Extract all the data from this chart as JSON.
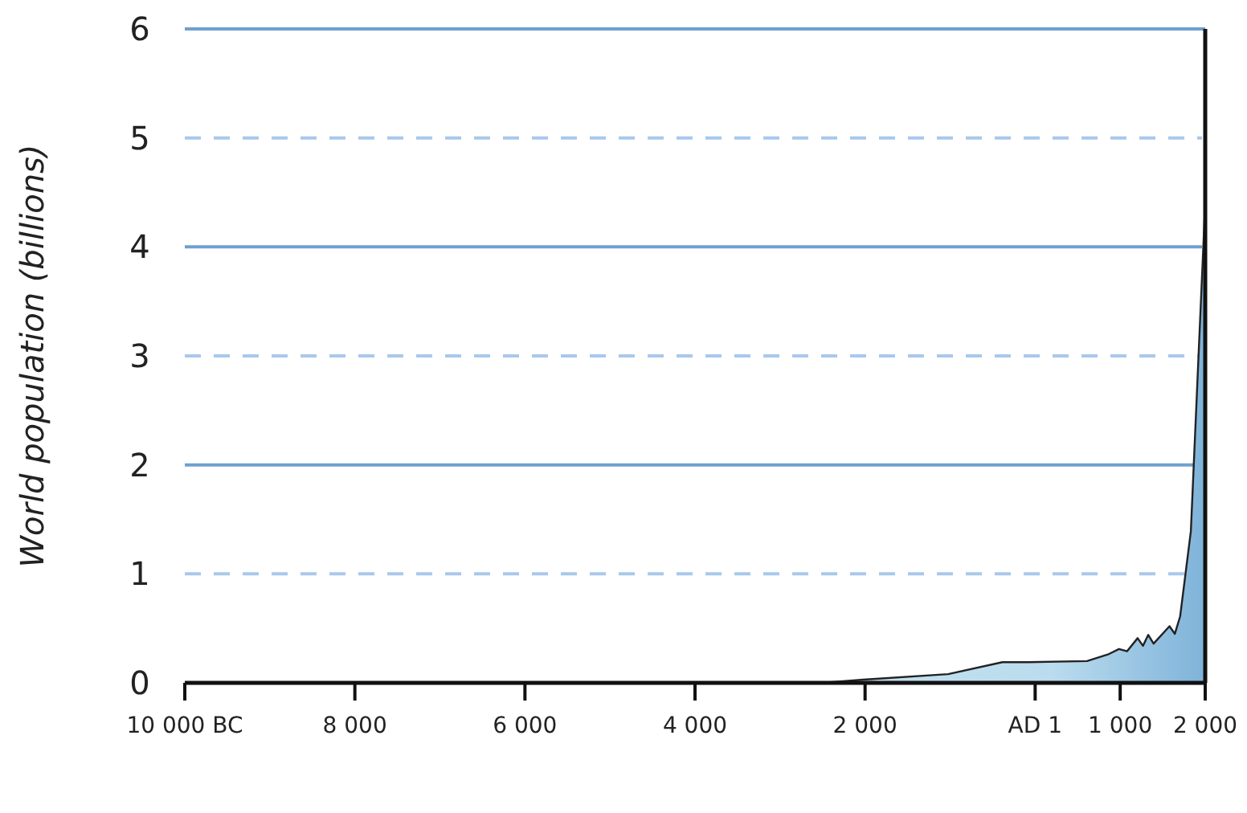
{
  "chart_data": {
    "type": "area",
    "ylabel": "World population (billions)",
    "x": [
      -10000,
      -2500,
      -2019,
      -1023,
      -385,
      -85,
      610,
      855,
      986,
      1080,
      1205,
      1268,
      1330,
      1393,
      1580,
      1643,
      1705,
      1768,
      1831,
      2000
    ],
    "series": [
      {
        "color": "#7fb3d9",
        "values": [
          0,
          0,
          0.03,
          0.08,
          0.19,
          0.19,
          0.2,
          0.26,
          0.31,
          0.29,
          0.41,
          0.34,
          0.44,
          0.36,
          0.52,
          0.45,
          0.61,
          1.0,
          1.39,
          4.4
        ]
      }
    ],
    "xlim": [
      -10000,
      2000
    ],
    "xticks": [
      {
        "value": -10000,
        "label": "10 000 BC"
      },
      {
        "value": -8000,
        "label": "8 000"
      },
      {
        "value": -6000,
        "label": "6 000"
      },
      {
        "value": -4000,
        "label": "4 000"
      },
      {
        "value": -2000,
        "label": "2 000"
      },
      {
        "value": 0,
        "label": "AD 1"
      },
      {
        "value": 1000,
        "label": "1 000"
      },
      {
        "value": 2000,
        "label": "2 000"
      }
    ],
    "ylim": [
      0,
      6
    ],
    "yticks": [
      0,
      1,
      2,
      3,
      4,
      5,
      6
    ],
    "ref_lines": [
      {
        "axis": "y",
        "value": 1,
        "color": "#a9c8ec",
        "line_style": "dashed"
      },
      {
        "axis": "y",
        "value": 2,
        "color": "#6f9fd0",
        "line_style": "solid"
      },
      {
        "axis": "y",
        "value": 3,
        "color": "#a9c8ec",
        "line_style": "dashed"
      },
      {
        "axis": "y",
        "value": 4,
        "color": "#6f9fd0",
        "line_style": "solid"
      },
      {
        "axis": "y",
        "value": 5,
        "color": "#a9c8ec",
        "line_style": "dashed"
      }
    ]
  }
}
